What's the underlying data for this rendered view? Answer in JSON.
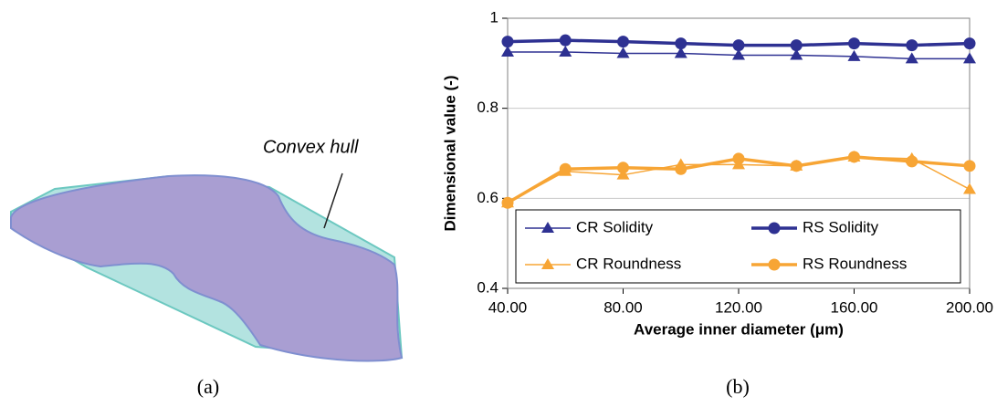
{
  "figure": {
    "annotation": "Convex hull",
    "panel_a_label": "(a)",
    "panel_b_label": "(b)"
  },
  "chart_data": {
    "type": "line",
    "x_label": "Average inner diameter (μm)",
    "y_label": "Dimensional value (-)",
    "x": [
      40,
      60,
      80,
      100,
      120,
      140,
      160,
      180,
      200
    ],
    "xlim": [
      40,
      200
    ],
    "xticks": [
      {
        "value": 40,
        "label": "40.00"
      },
      {
        "value": 80,
        "label": "80.00"
      },
      {
        "value": 120,
        "label": "120.00"
      },
      {
        "value": 160,
        "label": "160.00"
      },
      {
        "value": 200,
        "label": "200.00"
      }
    ],
    "ylim": [
      0.4,
      1
    ],
    "yticks": [
      0.4,
      0.6,
      0.8,
      1
    ],
    "grid": true,
    "series": [
      {
        "name": "CR Solidity",
        "color": "#2e3192",
        "values": [
          0.925,
          0.925,
          0.922,
          0.922,
          0.918,
          0.918,
          0.915,
          0.91,
          0.91
        ]
      },
      {
        "name": "RS Solidity",
        "color": "#2e3192",
        "values": [
          0.948,
          0.951,
          0.948,
          0.944,
          0.94,
          0.94,
          0.944,
          0.94,
          0.944
        ]
      },
      {
        "name": "CR Roundness",
        "color": "#f7a535",
        "values": [
          0.59,
          0.66,
          0.652,
          0.675,
          0.675,
          0.672,
          0.692,
          0.688,
          0.62
        ]
      },
      {
        "name": "RS Roundness",
        "color": "#f7a535",
        "values": [
          0.59,
          0.665,
          0.668,
          0.665,
          0.688,
          0.672,
          0.692,
          0.682,
          0.672
        ]
      }
    ]
  }
}
